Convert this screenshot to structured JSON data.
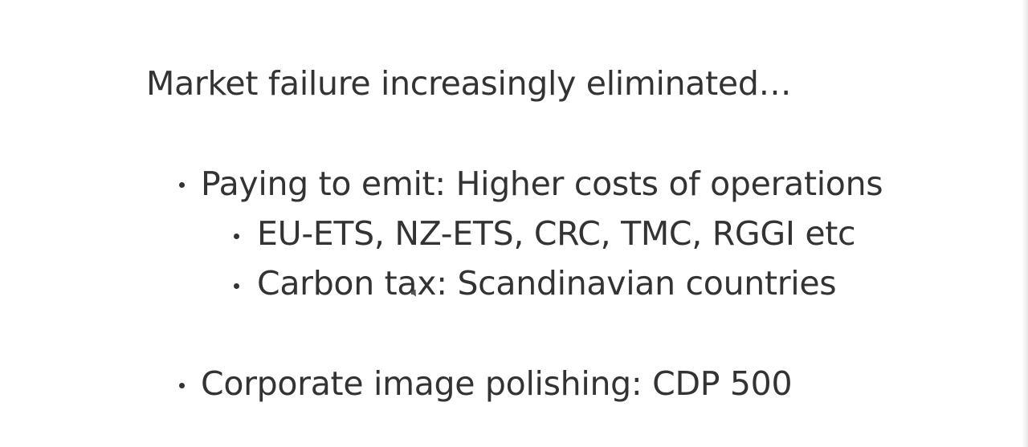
{
  "slide": {
    "title": "Market failure increasingly eliminated…",
    "bullets": [
      {
        "text": "Paying to emit: Higher costs of operations",
        "level": 1
      },
      {
        "text": "EU-ETS, NZ-ETS, CRC, TMC, RGGI etc",
        "level": 2
      },
      {
        "text": "Carbon tax: Scandinavian countries",
        "level": 2
      },
      {
        "text": "Corporate image polishing: CDP 500",
        "level": 1
      }
    ]
  },
  "colors": {
    "text": "#333333",
    "background": "#ffffff"
  }
}
